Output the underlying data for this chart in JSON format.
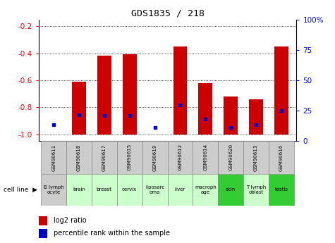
{
  "title": "GDS1835 / 218",
  "gsm_labels": [
    "GSM90611",
    "GSM90618",
    "GSM90617",
    "GSM90615",
    "GSM90619",
    "GSM90612",
    "GSM90614",
    "GSM90620",
    "GSM90613",
    "GSM90616"
  ],
  "cell_lines": [
    "B lymph\nocyte",
    "brain",
    "breast",
    "cervix",
    "liposarc\noma",
    "liver",
    "macroph\nage",
    "skin",
    "T lymph\noblast",
    "testis"
  ],
  "cell_bg_colors": [
    "#cccccc",
    "#ccffcc",
    "#ccffcc",
    "#ccffcc",
    "#ccffcc",
    "#ccffcc",
    "#ccffcc",
    "#33cc33",
    "#ccffcc",
    "#33cc33"
  ],
  "log2_ratio": [
    -1.0,
    -0.61,
    -0.42,
    -0.41,
    -1.0,
    -0.35,
    -0.62,
    -0.72,
    -0.74,
    -0.35
  ],
  "percentile_rank": [
    9,
    18,
    17,
    17,
    6,
    27,
    14,
    6,
    9,
    22
  ],
  "ylim_left": [
    -1.05,
    -0.15
  ],
  "ylim_right": [
    0,
    100
  ],
  "yticks_left": [
    -1.0,
    -0.8,
    -0.6,
    -0.4,
    -0.2
  ],
  "yticks_right": [
    0,
    25,
    50,
    75,
    100
  ],
  "ytick_labels_right": [
    "0",
    "25",
    "50",
    "75",
    "100%"
  ],
  "bar_color": "#cc0000",
  "dot_color": "#0000cc",
  "bg_color": "#ffffff",
  "grid_color": "#000000",
  "legend_labels": [
    "log2 ratio",
    "percentile rank within the sample"
  ],
  "bar_bottom": -1.0
}
